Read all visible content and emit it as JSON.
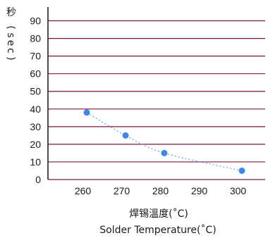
{
  "chart_data": {
    "type": "scatter",
    "xlabel": "焊锡溫度(˚C)",
    "xlabel_en": "Solder Temperature(˚C)",
    "ylabel": "秒 ( sec )",
    "x_ticks": [
      260,
      270,
      280,
      290,
      300
    ],
    "y_ticks": [
      0,
      10,
      20,
      30,
      40,
      50,
      60,
      70,
      80,
      90
    ],
    "xlim": [
      251,
      307
    ],
    "ylim": [
      0,
      97
    ],
    "grid": "horizontal",
    "series": [
      {
        "x": [
          261,
          271,
          281,
          301
        ],
        "y": [
          38,
          25,
          15,
          5
        ]
      }
    ],
    "trend_line": true,
    "colors": {
      "grid": "#7a1a3a",
      "point": "#3f86e8",
      "trend": "#5aa2e8",
      "axis": "#222222"
    }
  }
}
